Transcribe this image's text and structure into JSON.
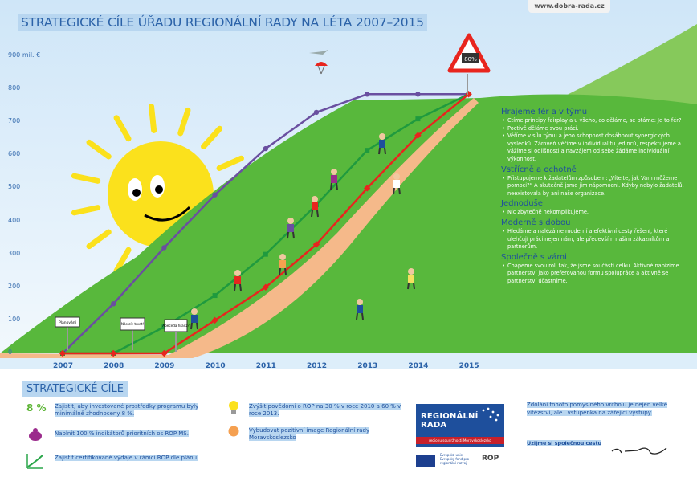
{
  "header": {
    "title": "STRATEGICKÉ CÍLE ÚŘADU REGIONÁLNÍ RADY NA LÉTA 2007–2015",
    "url": "www.dobra-rada.cz"
  },
  "chart_data": {
    "type": "line",
    "x": [
      "2007",
      "2008",
      "2009",
      "2010",
      "2011",
      "2012",
      "2013",
      "2014",
      "2015"
    ],
    "y_ticks": [
      "900 mil. €",
      "800",
      "700",
      "600",
      "500",
      "400",
      "300",
      "200",
      "100",
      "0"
    ],
    "ylim": [
      0,
      900
    ],
    "series": [
      {
        "color": "#6a4fa0",
        "values": [
          0,
          150,
          320,
          480,
          620,
          730,
          785,
          785,
          785
        ]
      },
      {
        "color": "#1f9a3e",
        "values": [
          0,
          0,
          80,
          175,
          300,
          450,
          615,
          710,
          785
        ]
      },
      {
        "color": "#e8251e",
        "values": [
          0,
          0,
          0,
          100,
          200,
          330,
          500,
          660,
          785
        ]
      }
    ]
  },
  "signs": {
    "s2007": "Plánování",
    "s2008": "Nás cíl: trvat!",
    "s2009": "Abeceda hradz?",
    "peak": "80%"
  },
  "values": [
    {
      "heading": "Hrajeme fér a v týmu",
      "items": [
        "Ctíme principy fairplay a u všeho, co děláme, se ptáme: Je to fér?",
        "Poctivě děláme svou práci.",
        "Věříme v sílu týmu a jeho schopnost dosáhnout synergických výsledků. Zároveň věříme v individualitu jedinců, respektujeme a vážíme si odlišnosti a navzájem od sebe žádáme individuální výkonnost."
      ]
    },
    {
      "heading": "Vstřícně a ochotně",
      "items": [
        "Přistupujeme k žadatelům způsobem: „Vítejte, jak Vám můžeme pomoci?“ A skutečně jsme jim nápomocni. Kdyby nebylo žadatelů, neexistovala by ani naše organizace."
      ]
    },
    {
      "heading": "Jednoduše",
      "items": [
        "Nic zbytečně nekomplikujeme."
      ]
    },
    {
      "heading": "Moderně s dobou",
      "items": [
        "Hledáme a nalézáme moderní a efektivní cesty řešení, které ulehčují práci nejen nám, ale především našim zákazníkům a partnerům."
      ]
    },
    {
      "heading": "Společně s vámi",
      "items": [
        "Chápeme svou roli tak, že jsme součástí celku. Aktivně nabízíme partnerství jako preferovanou formu spolupráce a aktivně se partnerství účastníme."
      ]
    }
  ],
  "goals": {
    "title": "STRATEGICKÉ CÍLE",
    "pct": "8 %",
    "g1": "Zajistit, aby investované prostředky programu byly minimálně zhodnoceny 8 %.",
    "g2": "Naplnit 100 % indikátorů prioritních os ROP MS.",
    "g3": "Zajistit certifikované výdaje v rámci ROP dle plánu.",
    "g4": "Zvýšit povědomí o ROP na 30 % v roce 2010 a 60 % v roce 2013.",
    "g5": "Vybudovat pozitivní image Regionální rady Moravskoslezsko"
  },
  "logo": {
    "title": "REGIONÁLNÍ RADA",
    "subtitle": "regionu soudržnosti Moravskoslezsko",
    "eu_text": "Evropská unie · Evropský fond pro regionální rozvoj",
    "rop": "ROP"
  },
  "quote": {
    "text": "Zdolání tohoto pomyslného vrcholu je nejen velké vítězství, ale i vstupenka na zářející výstupy.",
    "closing": "Uzijme si společnou cestu"
  },
  "colors": {
    "sky": "#ddeefa",
    "hill_green": "#58b83c",
    "path": "#f5b98a",
    "sun": "#fbe11c",
    "accent_blue": "#1e4f9c"
  }
}
